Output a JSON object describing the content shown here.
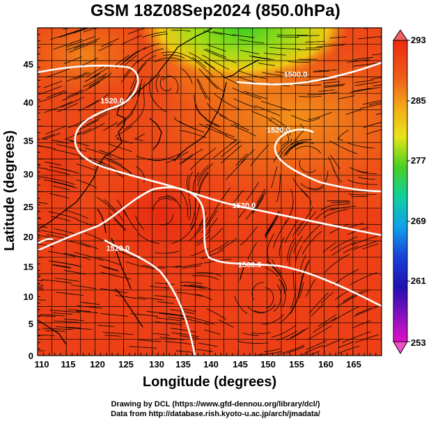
{
  "figure": {
    "title": "GSM 18Z08Sep2024 (850.0hPa)",
    "xlabel": "Longitude (degrees)",
    "ylabel": "Latitude  (degrees)",
    "credit_line1": "Drawing by DCL (https://www.gfd-dennou.org/library/dcl/)",
    "credit_line2": "Data from http://database.rish.kyoto-u.ac.jp/arch/jmadata/"
  },
  "axes": {
    "x_ticks": [
      "110",
      "115",
      "120",
      "125",
      "130",
      "135",
      "140",
      "145",
      "150",
      "155",
      "160",
      "165"
    ],
    "y_ticks": [
      "0",
      "5",
      "10",
      "15",
      "20",
      "25",
      "30",
      "35",
      "40",
      "45"
    ],
    "xlim": [
      110,
      170
    ],
    "ylim": [
      0,
      50
    ]
  },
  "colorbar": {
    "ticks": [
      "293",
      "285",
      "277",
      "269",
      "261",
      "253"
    ],
    "range": [
      253,
      293
    ]
  },
  "contour_labels": [
    {
      "text": "1520.0",
      "lon": 123,
      "lat": 38.5
    },
    {
      "text": "1520.0",
      "lon": 152,
      "lat": 34
    },
    {
      "text": "1520.0",
      "lon": 146,
      "lat": 22.5
    },
    {
      "text": "1520.0",
      "lon": 124,
      "lat": 16
    },
    {
      "text": "1500.0",
      "lon": 147,
      "lat": 13.5
    },
    {
      "text": "1500.0",
      "lon": 155,
      "lat": 42.5
    }
  ],
  "colors": {
    "warm": "#ec3a16",
    "orange": "#f2801a",
    "yellow": "#f4ca14",
    "green": "#3cd020",
    "contour": "#ffffff"
  }
}
